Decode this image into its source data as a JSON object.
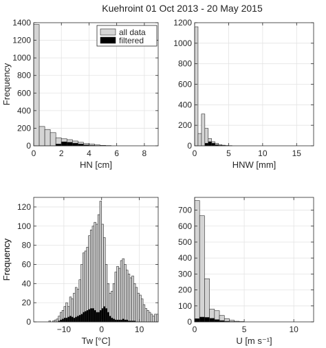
{
  "figure": {
    "title": "Kuehroint 01 Oct 2013 - 20 May 2015",
    "colors": {
      "all_data": "#d4d4d4",
      "filtered": "#000000",
      "axis": "#262626",
      "edge": "#262626"
    },
    "legend": {
      "entries": [
        "all data",
        "filtered"
      ],
      "location": "top-right of first panel"
    }
  },
  "chart_data": [
    {
      "type": "bar",
      "xlabel": "HN [cm]",
      "ylabel": "Frequency",
      "xlim": [
        0,
        9
      ],
      "ylim": [
        0,
        1400
      ],
      "xticks": [
        0,
        2,
        4,
        6,
        8
      ],
      "yticks": [
        0,
        200,
        400,
        600,
        800,
        1000,
        1200,
        1400
      ],
      "bin_width": 0.4,
      "grid": true,
      "legend": true,
      "series": [
        {
          "name": "all data",
          "color": "#d4d4d4",
          "x": [
            0.2,
            0.6,
            1.0,
            1.4,
            1.8,
            2.2,
            2.6,
            3.0,
            3.4,
            3.8,
            4.2,
            4.6,
            5.0,
            5.4
          ],
          "values": [
            1380,
            220,
            185,
            150,
            90,
            80,
            70,
            55,
            40,
            25,
            20,
            10,
            5,
            3
          ]
        },
        {
          "name": "filtered",
          "color": "#000000",
          "x": [
            1.8,
            2.2,
            2.6,
            3.0,
            3.4,
            3.8,
            4.2,
            4.6
          ],
          "values": [
            20,
            45,
            40,
            30,
            20,
            10,
            5,
            2
          ]
        }
      ]
    },
    {
      "type": "bar",
      "xlabel": "HNW [mm]",
      "ylabel": "",
      "xlim": [
        0,
        17.5
      ],
      "ylim": [
        0,
        1200
      ],
      "xticks": [
        0,
        5,
        10,
        15
      ],
      "yticks": [
        0,
        200,
        400,
        600,
        800,
        1000,
        1200
      ],
      "bin_width": 0.5,
      "grid": true,
      "legend": false,
      "series": [
        {
          "name": "all data",
          "color": "#d4d4d4",
          "x": [
            0.25,
            0.75,
            1.25,
            1.75,
            2.25,
            2.75,
            3.25,
            3.75,
            4.25,
            4.75,
            5.25
          ],
          "values": [
            1160,
            120,
            310,
            170,
            70,
            40,
            25,
            12,
            6,
            3,
            2
          ]
        },
        {
          "name": "filtered",
          "color": "#000000",
          "x": [
            1.75,
            2.25,
            2.75,
            3.25,
            3.75,
            4.25
          ],
          "values": [
            25,
            40,
            25,
            10,
            4,
            2
          ]
        }
      ]
    },
    {
      "type": "bar",
      "xlabel": "Tw [°C]",
      "ylabel": "Frequency",
      "xlim": [
        -18,
        15
      ],
      "ylim": [
        0,
        130
      ],
      "xticks": [
        -10,
        0,
        10
      ],
      "yticks": [
        0,
        20,
        40,
        60,
        80,
        100,
        120
      ],
      "bin_width": 0.5,
      "grid": true,
      "legend": false,
      "series": [
        {
          "name": "all data",
          "color": "#d4d4d4",
          "x": [
            -13.75,
            -13.25,
            -12.75,
            -12.25,
            -11.75,
            -11.25,
            -10.75,
            -10.25,
            -9.75,
            -9.25,
            -8.75,
            -8.25,
            -7.75,
            -7.25,
            -6.75,
            -6.25,
            -5.75,
            -5.25,
            -4.75,
            -4.25,
            -3.75,
            -3.25,
            -2.75,
            -2.25,
            -1.75,
            -1.25,
            -0.75,
            -0.25,
            0.25,
            0.75,
            1.25,
            1.75,
            2.25,
            2.75,
            3.25,
            3.75,
            4.25,
            4.75,
            5.25,
            5.75,
            6.25,
            6.75,
            7.25,
            7.75,
            8.25,
            8.75,
            9.25,
            9.75,
            10.25,
            10.75,
            11.25,
            11.75,
            12.25,
            12.75,
            13.25,
            13.75,
            14.25,
            14.75
          ],
          "values": [
            1,
            0,
            1,
            2,
            3,
            6,
            10,
            12,
            16,
            20,
            16,
            26,
            24,
            30,
            36,
            34,
            44,
            60,
            72,
            74,
            78,
            90,
            96,
            100,
            104,
            102,
            112,
            126,
            102,
            88,
            60,
            40,
            30,
            32,
            40,
            52,
            58,
            56,
            64,
            66,
            60,
            54,
            50,
            46,
            48,
            40,
            36,
            30,
            28,
            24,
            18,
            14,
            12,
            10,
            8,
            6,
            8,
            8
          ]
        },
        {
          "name": "filtered",
          "color": "#000000",
          "x": [
            -11.25,
            -10.75,
            -10.25,
            -9.75,
            -9.25,
            -8.75,
            -8.25,
            -7.75,
            -7.25,
            -6.75,
            -6.25,
            -5.75,
            -5.25,
            -4.75,
            -4.25,
            -3.75,
            -3.25,
            -2.75,
            -2.25,
            -1.75,
            -1.25,
            -0.75,
            -0.25,
            0.25,
            0.75,
            1.25,
            1.75,
            2.25,
            2.75,
            3.25,
            3.75,
            4.25,
            4.75,
            5.25,
            5.75,
            6.25,
            6.75,
            7.25,
            7.75,
            8.25,
            8.75
          ],
          "values": [
            1,
            2,
            3,
            4,
            4,
            5,
            6,
            5,
            4,
            5,
            6,
            7,
            8,
            10,
            11,
            12,
            13,
            14,
            14,
            12,
            10,
            10,
            12,
            14,
            16,
            14,
            10,
            6,
            4,
            3,
            2,
            2,
            2,
            2,
            3,
            2,
            2,
            1,
            1,
            1,
            1
          ]
        }
      ]
    },
    {
      "type": "bar",
      "xlabel": "U [m s⁻¹]",
      "ylabel": "Frequency",
      "xlim": [
        0,
        12
      ],
      "ylim": [
        0,
        780
      ],
      "xticks": [
        0,
        5,
        10
      ],
      "yticks": [
        0,
        100,
        200,
        300,
        400,
        500,
        600,
        700
      ],
      "bin_width": 0.5,
      "grid": true,
      "legend": false,
      "series": [
        {
          "name": "all data",
          "color": "#d4d4d4",
          "x": [
            0.25,
            0.75,
            1.25,
            1.75,
            2.25,
            2.75,
            3.25,
            3.75,
            4.25,
            4.75
          ],
          "values": [
            760,
            665,
            270,
            80,
            70,
            40,
            20,
            10,
            4,
            2
          ]
        },
        {
          "name": "filtered",
          "color": "#000000",
          "x": [
            0.25,
            0.75,
            1.25,
            1.75,
            2.25,
            2.75,
            3.25,
            3.75
          ],
          "values": [
            20,
            30,
            28,
            22,
            14,
            8,
            4,
            2
          ]
        }
      ]
    }
  ]
}
